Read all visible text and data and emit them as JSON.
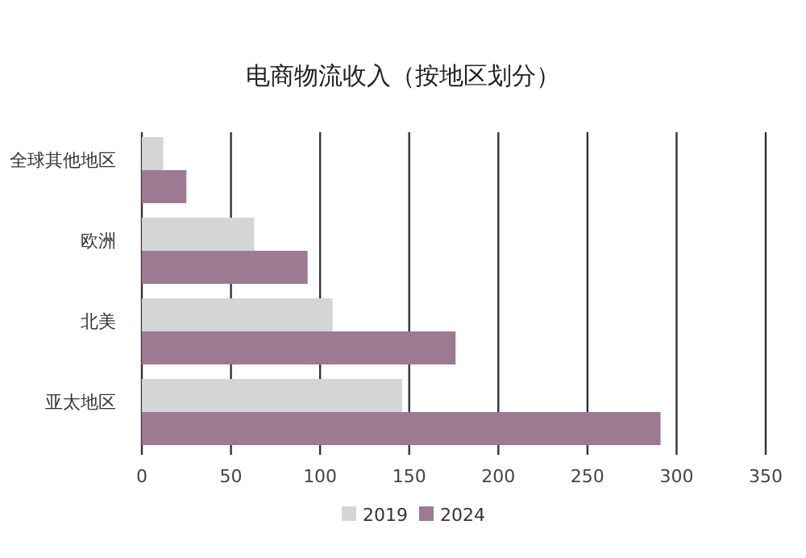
{
  "chart_data": {
    "type": "bar",
    "orientation": "horizontal",
    "title": "电商物流收入（按地区划分）",
    "categories": [
      "全球其他地区",
      "欧洲",
      "北美",
      "亚太地区"
    ],
    "series": [
      {
        "name": "2019",
        "color": "#d4d5d7",
        "values": [
          12,
          63,
          107,
          146
        ]
      },
      {
        "name": "2024",
        "color": "#9c7b92",
        "values": [
          25,
          93,
          176,
          291
        ]
      }
    ],
    "xlim": [
      0,
      350
    ],
    "xticks": [
      0,
      50,
      100,
      150,
      200,
      250,
      300,
      350
    ],
    "grid": "x",
    "legend": "bottom"
  }
}
